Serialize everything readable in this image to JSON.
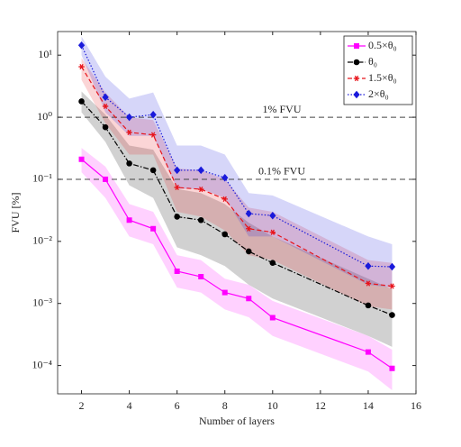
{
  "chart_data": {
    "type": "line",
    "xlabel": "Number of layers",
    "ylabel": "FVU [%]",
    "x": [
      2,
      3,
      4,
      5,
      6,
      7,
      8,
      9,
      10,
      14,
      15
    ],
    "xlim": [
      1,
      16
    ],
    "xticks": [
      2,
      4,
      6,
      8,
      10,
      12,
      14,
      16
    ],
    "ylim": [
      3.5e-05,
      24
    ],
    "yscale": "log",
    "yticks": [
      {
        "value": 0.0001,
        "label": "10⁻⁴"
      },
      {
        "value": 0.001,
        "label": "10⁻³"
      },
      {
        "value": 0.01,
        "label": "10⁻²"
      },
      {
        "value": 0.1,
        "label": "10⁻¹"
      },
      {
        "value": 1,
        "label": "10⁰"
      },
      {
        "value": 10,
        "label": "10¹"
      }
    ],
    "legend": "upper right",
    "reference_lines": [
      {
        "value": 1,
        "label": "1% FVU"
      },
      {
        "value": 0.1,
        "label": "0.1% FVU"
      }
    ],
    "series": [
      {
        "name": "0.5×θ₀",
        "color": "#ff00ff",
        "marker": "square",
        "dash": "solid",
        "values": [
          0.21,
          0.1,
          0.022,
          0.016,
          0.0033,
          0.0027,
          0.0015,
          0.0012,
          0.00059,
          0.000165,
          9e-05
        ],
        "upper": [
          0.32,
          0.16,
          0.04,
          0.03,
          0.006,
          0.005,
          0.0025,
          0.002,
          0.0011,
          0.0003,
          0.00018
        ],
        "lower": [
          0.13,
          0.05,
          0.012,
          0.009,
          0.0018,
          0.0015,
          0.0008,
          0.0006,
          0.0003,
          8e-05,
          4e-05
        ]
      },
      {
        "name": "θ₀",
        "color": "#000000",
        "marker": "circle",
        "dash": "dashdot",
        "values": [
          1.8,
          0.69,
          0.18,
          0.14,
          0.025,
          0.022,
          0.013,
          0.0069,
          0.0045,
          0.00093,
          0.00065
        ],
        "upper": [
          2.6,
          1.1,
          0.35,
          0.3,
          0.07,
          0.06,
          0.04,
          0.02,
          0.012,
          0.0025,
          0.0017
        ],
        "lower": [
          1.2,
          0.4,
          0.08,
          0.05,
          0.008,
          0.006,
          0.004,
          0.002,
          0.0012,
          0.0003,
          0.0002
        ]
      },
      {
        "name": "1.5×θ₀",
        "color": "#e8141b",
        "marker": "star",
        "dash": "dashed",
        "values": [
          6.5,
          1.5,
          0.57,
          0.52,
          0.074,
          0.069,
          0.048,
          0.016,
          0.014,
          0.0021,
          0.0019
        ],
        "upper": [
          9,
          2.5,
          1.0,
          0.9,
          0.15,
          0.14,
          0.1,
          0.035,
          0.03,
          0.005,
          0.0045
        ],
        "lower": [
          4,
          0.8,
          0.25,
          0.25,
          0.03,
          0.025,
          0.015,
          0.006,
          0.005,
          0.0009,
          0.0008
        ]
      },
      {
        "name": "2×θ₀",
        "color": "#1a1adb",
        "marker": "diamond",
        "dash": "dotted",
        "values": [
          14.4,
          2.1,
          1.0,
          1.1,
          0.14,
          0.14,
          0.106,
          0.028,
          0.026,
          0.004,
          0.0039
        ],
        "upper": [
          20,
          4.5,
          2,
          2.5,
          0.35,
          0.35,
          0.25,
          0.06,
          0.055,
          0.012,
          0.009
        ],
        "lower": [
          10,
          1.2,
          0.5,
          0.5,
          0.07,
          0.07,
          0.05,
          0.012,
          0.012,
          0.002,
          0.0018
        ]
      }
    ]
  }
}
